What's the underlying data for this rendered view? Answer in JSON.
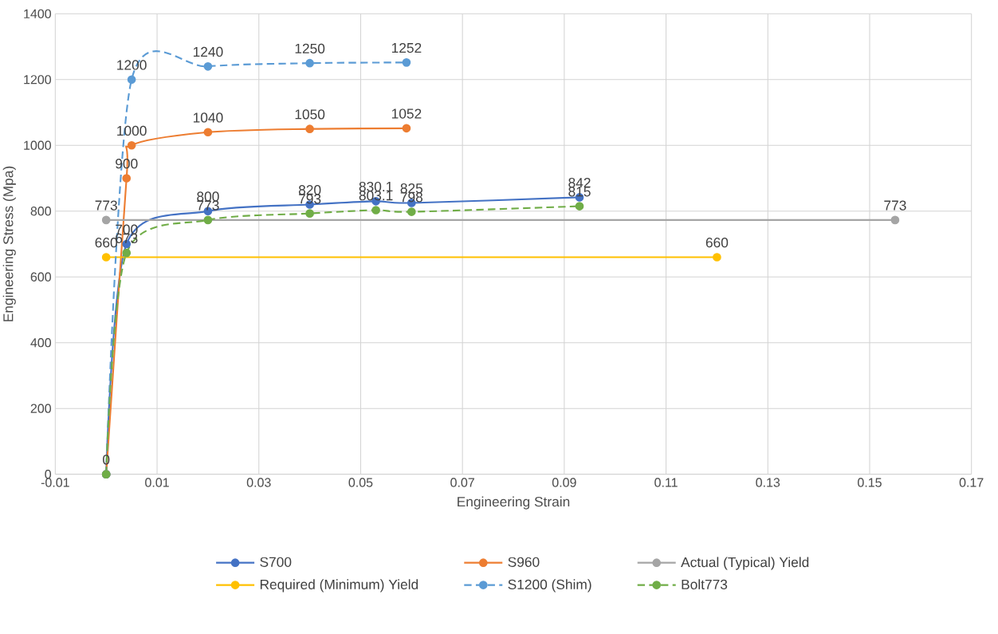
{
  "chart_data": {
    "type": "line",
    "xlabel": "Engineering Strain",
    "ylabel": "Engineering Stress (Mpa)",
    "xlim": [
      -0.01,
      0.17
    ],
    "xticks": [
      -0.01,
      0.01,
      0.03,
      0.05,
      0.07,
      0.09,
      0.11,
      0.13,
      0.15,
      0.17
    ],
    "ylim": [
      0,
      1400
    ],
    "yticks": [
      0,
      200,
      400,
      600,
      800,
      1000,
      1200,
      1400
    ],
    "grid": true,
    "legend": "bottom",
    "marker": "circle",
    "series": [
      {
        "name": "S700",
        "color": "#4472c4",
        "line_style": "solid",
        "x": [
          0,
          0.004,
          0.02,
          0.04,
          0.053,
          0.06,
          0.093
        ],
        "values": [
          0,
          700,
          800,
          820,
          830.1,
          825,
          842
        ],
        "value_labels": [
          "0",
          "700",
          "800",
          "820",
          "830.1",
          "825",
          "842"
        ]
      },
      {
        "name": "S960",
        "color": "#ed7d31",
        "line_style": "solid",
        "x": [
          0,
          0.004,
          0.005,
          0.02,
          0.04,
          0.059
        ],
        "values": [
          0,
          900,
          1000,
          1040,
          1050,
          1052
        ],
        "value_labels": [
          null,
          "900",
          "1000",
          "1040",
          "1050",
          "1052"
        ]
      },
      {
        "name": "Actual (Typical) Yield",
        "color": "#a5a5a5",
        "line_style": "solid",
        "x": [
          0,
          0.155
        ],
        "values": [
          773,
          773
        ],
        "value_labels": [
          "773",
          "773"
        ]
      },
      {
        "name": "Required (Minimum) Yield",
        "color": "#ffc000",
        "line_style": "solid",
        "x": [
          0,
          0.12
        ],
        "values": [
          660,
          660
        ],
        "value_labels": [
          "660",
          "660"
        ]
      },
      {
        "name": "S1200 (Shim)",
        "color": "#5b9bd5",
        "line_style": "dashed",
        "x": [
          0,
          0.005,
          0.02,
          0.04,
          0.059
        ],
        "values": [
          0,
          1200,
          1240,
          1250,
          1252
        ],
        "value_labels": [
          null,
          "1200",
          "1240",
          "1250",
          "1252"
        ]
      },
      {
        "name": "Bolt773",
        "color": "#70ad47",
        "line_style": "dashed",
        "x": [
          0,
          0.004,
          0.02,
          0.04,
          0.053,
          0.06,
          0.093
        ],
        "values": [
          0,
          673,
          773,
          793,
          803.1,
          798,
          815
        ],
        "value_labels": [
          null,
          "673",
          "773",
          "793",
          "803.1",
          "798",
          "815"
        ]
      }
    ]
  }
}
